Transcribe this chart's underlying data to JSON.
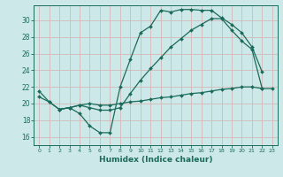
{
  "bg_color": "#cde8e8",
  "grid_color": "#b8d8d8",
  "line_color": "#1a6b5a",
  "marker_color": "#1a6b5a",
  "xlabel": "Humidex (Indice chaleur)",
  "xlim": [
    -0.5,
    23.5
  ],
  "ylim": [
    15.0,
    31.8
  ],
  "yticks": [
    16,
    18,
    20,
    22,
    24,
    26,
    28,
    30
  ],
  "xticks": [
    0,
    1,
    2,
    3,
    4,
    5,
    6,
    7,
    8,
    9,
    10,
    11,
    12,
    13,
    14,
    15,
    16,
    17,
    18,
    19,
    20,
    21,
    22,
    23
  ],
  "curve1_x": [
    0,
    1,
    2,
    3,
    4,
    5,
    6,
    7,
    8,
    9,
    10,
    11,
    12,
    13,
    14,
    15,
    16,
    17,
    18,
    19,
    20,
    21,
    22
  ],
  "curve1_y": [
    21.5,
    20.2,
    19.3,
    19.5,
    18.8,
    17.3,
    16.5,
    16.5,
    22.0,
    25.3,
    28.5,
    29.3,
    31.2,
    31.0,
    31.3,
    31.3,
    31.2,
    31.2,
    30.3,
    29.5,
    28.5,
    26.8,
    23.8
  ],
  "curve2_x": [
    2,
    3,
    4,
    5,
    6,
    7,
    8,
    9,
    10,
    11,
    12,
    13,
    14,
    15,
    16,
    17,
    18,
    19,
    20,
    21,
    22
  ],
  "curve2_y": [
    19.3,
    19.5,
    19.8,
    19.5,
    19.2,
    19.2,
    19.5,
    21.2,
    22.8,
    24.2,
    25.5,
    26.8,
    27.8,
    28.8,
    29.5,
    30.2,
    30.2,
    28.8,
    27.5,
    26.5,
    21.8
  ],
  "curve3_x": [
    0,
    1,
    2,
    3,
    4,
    5,
    6,
    7,
    8,
    9,
    10,
    11,
    12,
    13,
    14,
    15,
    16,
    17,
    18,
    19,
    20,
    21,
    22,
    23
  ],
  "curve3_y": [
    20.8,
    20.2,
    19.3,
    19.5,
    19.8,
    20.0,
    19.8,
    19.8,
    20.0,
    20.2,
    20.3,
    20.5,
    20.7,
    20.8,
    21.0,
    21.2,
    21.3,
    21.5,
    21.7,
    21.8,
    22.0,
    22.0,
    21.8,
    21.8
  ]
}
